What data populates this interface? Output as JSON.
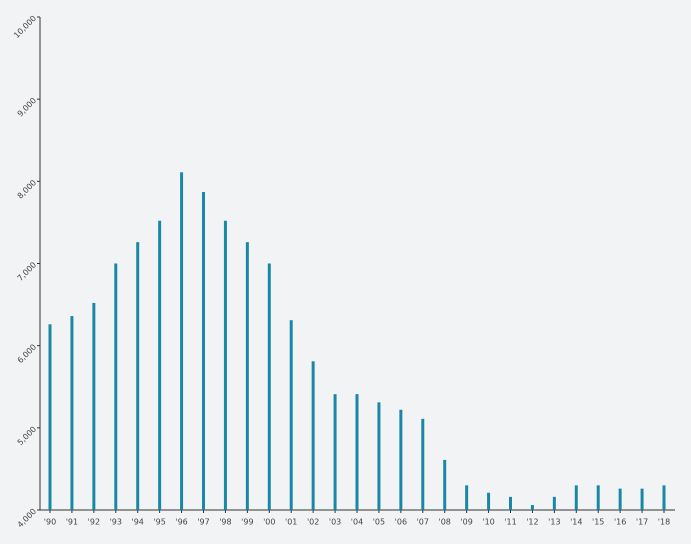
{
  "chart_data": {
    "type": "bar",
    "categories": [
      "'90",
      "'91",
      "'92",
      "'93",
      "'94",
      "'95",
      "'96",
      "'97",
      "'98",
      "'99",
      "'00",
      "'01",
      "'02",
      "'03",
      "'04",
      "'05",
      "'06",
      "'07",
      "'08",
      "'09",
      "'10",
      "'11",
      "'12",
      "'13",
      "'14",
      "'15",
      "'16",
      "'17",
      "'18"
    ],
    "values": [
      6260,
      6360,
      6520,
      7000,
      7260,
      7520,
      8110,
      7870,
      7520,
      7260,
      7000,
      6310,
      5810,
      5410,
      5410,
      5310,
      5220,
      5110,
      4610,
      4300,
      4210,
      4160,
      4060,
      4160,
      4300,
      4300,
      4260,
      4260,
      4300
    ],
    "color": "#1b87a6",
    "ylim": [
      4000,
      10000
    ],
    "yticks": [
      {
        "value": 4000,
        "label": "4,000"
      },
      {
        "value": 5000,
        "label": "5,000"
      },
      {
        "value": 6000,
        "label": "6,000"
      },
      {
        "value": 7000,
        "label": "7,000"
      },
      {
        "value": 8000,
        "label": "8,000"
      },
      {
        "value": 9000,
        "label": "9,000"
      },
      {
        "value": 10000,
        "label": "10,000"
      }
    ]
  }
}
